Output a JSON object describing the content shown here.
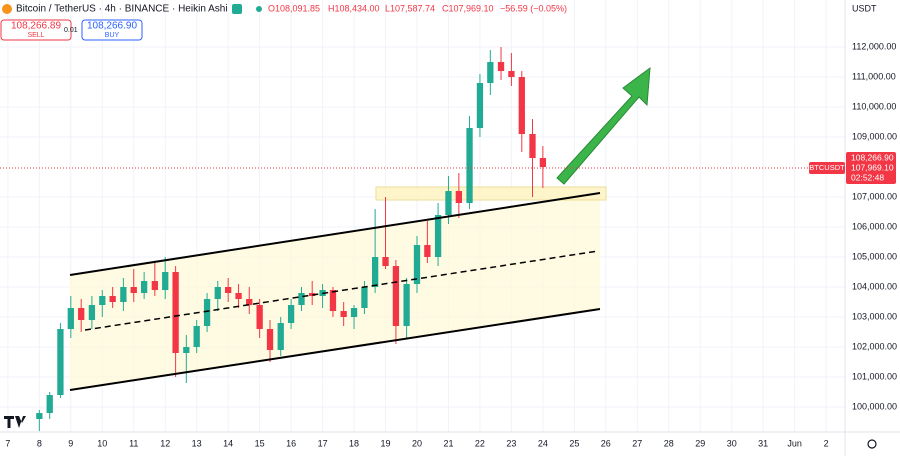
{
  "header": {
    "symbol": "Bitcoin / TetherUS · 4h · BINANCE · Heikin Ashi",
    "open": "O108,091.85",
    "high": "H108,434.00",
    "low": "L107,587.74",
    "close": "C107,969.10",
    "change": "−56.59 (−0.05%)",
    "sell_price": "108,266.89",
    "sell_label": "SELL",
    "spread": "0.01",
    "buy_price": "108,266.90",
    "buy_label": "BUY"
  },
  "price_scale": {
    "currency": "USDT",
    "symbol_label": "BTCUSDT",
    "ask": "108,266.90",
    "last": "107,969.10",
    "countdown": "02:52:48"
  },
  "chart_data": {
    "type": "candlestick",
    "up_color": "#22ab94",
    "down_color": "#f23645",
    "grid": true,
    "xlim": [
      6.75,
      33.6
    ],
    "ylim": [
      99167,
      113567
    ],
    "xticks": [
      7,
      8,
      9,
      10,
      11,
      12,
      13,
      14,
      15,
      16,
      17,
      18,
      19,
      20,
      21,
      22,
      23,
      24,
      25,
      26,
      27,
      28,
      29,
      30,
      31,
      {
        "value": 32,
        "label": "Jun"
      },
      {
        "value": 33,
        "label": "2"
      }
    ],
    "yticks": [
      {
        "value": 100000,
        "label": "100,000.00"
      },
      {
        "value": 101000,
        "label": "101,000.00"
      },
      {
        "value": 102000,
        "label": "102,000.00"
      },
      {
        "value": 103000,
        "label": "103,000.00"
      },
      {
        "value": 104000,
        "label": "104,000.00"
      },
      {
        "value": 105000,
        "label": "105,000.00"
      },
      {
        "value": 106000,
        "label": "106,000.00"
      },
      {
        "value": 107000,
        "label": "107,000.00"
      },
      {
        "value": 109000,
        "label": "109,000.00"
      },
      {
        "value": 110000,
        "label": "110,000.00"
      },
      {
        "value": 111000,
        "label": "111,000.00"
      },
      {
        "value": 112000,
        "label": "112,000.00"
      }
    ],
    "candles": [
      {
        "x": 8.0,
        "o": 99600,
        "h": 99900,
        "l": 99200,
        "c": 99800
      },
      {
        "x": 8.33,
        "o": 99800,
        "h": 100500,
        "l": 99600,
        "c": 100400
      },
      {
        "x": 8.67,
        "o": 100400,
        "h": 102800,
        "l": 100300,
        "c": 102600
      },
      {
        "x": 9.0,
        "o": 102600,
        "h": 103700,
        "l": 102300,
        "c": 103300
      },
      {
        "x": 9.33,
        "o": 103300,
        "h": 103600,
        "l": 102500,
        "c": 102900
      },
      {
        "x": 9.67,
        "o": 102900,
        "h": 103700,
        "l": 102600,
        "c": 103400
      },
      {
        "x": 10.0,
        "o": 103400,
        "h": 103900,
        "l": 103000,
        "c": 103700
      },
      {
        "x": 10.33,
        "o": 103700,
        "h": 104000,
        "l": 103300,
        "c": 103500
      },
      {
        "x": 10.67,
        "o": 103500,
        "h": 104300,
        "l": 103200,
        "c": 104000
      },
      {
        "x": 11.0,
        "o": 104000,
        "h": 104600,
        "l": 103500,
        "c": 103800
      },
      {
        "x": 11.33,
        "o": 103800,
        "h": 104500,
        "l": 103600,
        "c": 104200
      },
      {
        "x": 11.67,
        "o": 104200,
        "h": 104800,
        "l": 103700,
        "c": 103900
      },
      {
        "x": 12.0,
        "o": 103900,
        "h": 105000,
        "l": 103600,
        "c": 104500
      },
      {
        "x": 12.33,
        "o": 104500,
        "h": 104700,
        "l": 101000,
        "c": 101800
      },
      {
        "x": 12.67,
        "o": 101800,
        "h": 102400,
        "l": 100800,
        "c": 102000
      },
      {
        "x": 13.0,
        "o": 102000,
        "h": 102900,
        "l": 101800,
        "c": 102700
      },
      {
        "x": 13.33,
        "o": 102700,
        "h": 103800,
        "l": 102500,
        "c": 103600
      },
      {
        "x": 13.67,
        "o": 103600,
        "h": 104200,
        "l": 103200,
        "c": 104000
      },
      {
        "x": 14.0,
        "o": 104000,
        "h": 104300,
        "l": 103500,
        "c": 103800
      },
      {
        "x": 14.33,
        "o": 103800,
        "h": 104100,
        "l": 103300,
        "c": 103600
      },
      {
        "x": 14.67,
        "o": 103600,
        "h": 104000,
        "l": 103100,
        "c": 103400
      },
      {
        "x": 15.0,
        "o": 103400,
        "h": 103600,
        "l": 102300,
        "c": 102600
      },
      {
        "x": 15.33,
        "o": 102600,
        "h": 102900,
        "l": 101500,
        "c": 101900
      },
      {
        "x": 15.67,
        "o": 101900,
        "h": 103000,
        "l": 101700,
        "c": 102800
      },
      {
        "x": 16.0,
        "o": 102800,
        "h": 103600,
        "l": 102600,
        "c": 103400
      },
      {
        "x": 16.33,
        "o": 103400,
        "h": 104000,
        "l": 103200,
        "c": 103800
      },
      {
        "x": 16.67,
        "o": 103800,
        "h": 104200,
        "l": 103400,
        "c": 103700
      },
      {
        "x": 17.0,
        "o": 103700,
        "h": 104100,
        "l": 103300,
        "c": 103900
      },
      {
        "x": 17.33,
        "o": 103900,
        "h": 104000,
        "l": 103000,
        "c": 103200
      },
      {
        "x": 17.67,
        "o": 103200,
        "h": 103500,
        "l": 102700,
        "c": 103000
      },
      {
        "x": 18.0,
        "o": 103000,
        "h": 103400,
        "l": 102600,
        "c": 103300
      },
      {
        "x": 18.33,
        "o": 103300,
        "h": 104200,
        "l": 103100,
        "c": 104000
      },
      {
        "x": 18.67,
        "o": 104000,
        "h": 106600,
        "l": 103800,
        "c": 105000
      },
      {
        "x": 19.0,
        "o": 105000,
        "h": 107000,
        "l": 104600,
        "c": 104700
      },
      {
        "x": 19.33,
        "o": 104700,
        "h": 104900,
        "l": 102100,
        "c": 102700
      },
      {
        "x": 19.67,
        "o": 102700,
        "h": 104300,
        "l": 102300,
        "c": 104100
      },
      {
        "x": 20.0,
        "o": 104100,
        "h": 105700,
        "l": 103800,
        "c": 105400
      },
      {
        "x": 20.33,
        "o": 105400,
        "h": 106200,
        "l": 104800,
        "c": 105000
      },
      {
        "x": 20.67,
        "o": 105000,
        "h": 106800,
        "l": 104700,
        "c": 106400
      },
      {
        "x": 21.0,
        "o": 106400,
        "h": 107700,
        "l": 106100,
        "c": 107200
      },
      {
        "x": 21.33,
        "o": 107200,
        "h": 107800,
        "l": 106300,
        "c": 106800
      },
      {
        "x": 21.67,
        "o": 106800,
        "h": 109700,
        "l": 106600,
        "c": 109300
      },
      {
        "x": 22.0,
        "o": 109300,
        "h": 111100,
        "l": 109000,
        "c": 110800
      },
      {
        "x": 22.33,
        "o": 110800,
        "h": 111900,
        "l": 110400,
        "c": 111500
      },
      {
        "x": 22.67,
        "o": 111500,
        "h": 112000,
        "l": 110900,
        "c": 111200
      },
      {
        "x": 23.0,
        "o": 111200,
        "h": 111800,
        "l": 110700,
        "c": 111000
      },
      {
        "x": 23.33,
        "o": 111000,
        "h": 111200,
        "l": 108500,
        "c": 109100
      },
      {
        "x": 23.67,
        "o": 109100,
        "h": 109600,
        "l": 107000,
        "c": 108300
      },
      {
        "x": 24.0,
        "o": 108300,
        "h": 108700,
        "l": 107300,
        "c": 108000
      }
    ]
  }
}
